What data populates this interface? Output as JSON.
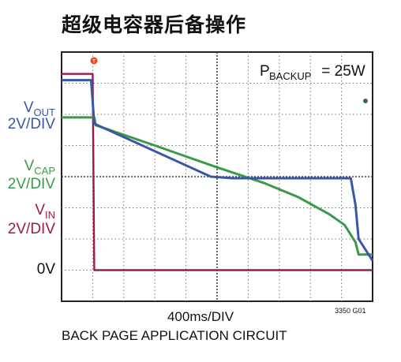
{
  "title": "超级电容器后备操作",
  "chart_data": {
    "type": "line",
    "annotation": "P",
    "annotation_sub": "BACKUP",
    "annotation_value": " = 25W",
    "xlabel": "400ms/DIV",
    "figure_id": "3350 G01",
    "caption": "BACK PAGE APPLICATION CIRCUIT",
    "x_divisions": 10,
    "y_divisions": 8,
    "zero_label": "0V",
    "grid": true,
    "series": [
      {
        "name": "V",
        "sub": "OUT",
        "scale": "2V/DIV",
        "color": "#3a57a6",
        "points": [
          [
            0,
            7.1
          ],
          [
            0.95,
            7.1
          ],
          [
            1.05,
            5.7
          ],
          [
            4.8,
            4.0
          ],
          [
            5.5,
            3.95
          ],
          [
            9.3,
            3.95
          ],
          [
            9.45,
            3.1
          ],
          [
            9.55,
            2.0
          ],
          [
            10,
            1.3
          ]
        ]
      },
      {
        "name": "V",
        "sub": "CAP",
        "scale": "2V/DIV",
        "color": "#3a9a47",
        "points": [
          [
            0,
            5.9
          ],
          [
            1.05,
            5.9
          ],
          [
            1.1,
            5.65
          ],
          [
            3.0,
            5.0
          ],
          [
            5.0,
            4.3
          ],
          [
            6.5,
            3.8
          ],
          [
            7.6,
            3.35
          ],
          [
            8.6,
            2.8
          ],
          [
            9.1,
            2.45
          ],
          [
            9.45,
            1.9
          ],
          [
            9.55,
            1.5
          ],
          [
            10,
            1.5
          ]
        ]
      },
      {
        "name": "V",
        "sub": "IN",
        "scale": "2V/DIV",
        "color": "#9c1a4a",
        "points": [
          [
            0,
            7.3
          ],
          [
            1.0,
            7.3
          ],
          [
            1.05,
            1.0
          ],
          [
            10,
            1.0
          ]
        ]
      }
    ]
  }
}
